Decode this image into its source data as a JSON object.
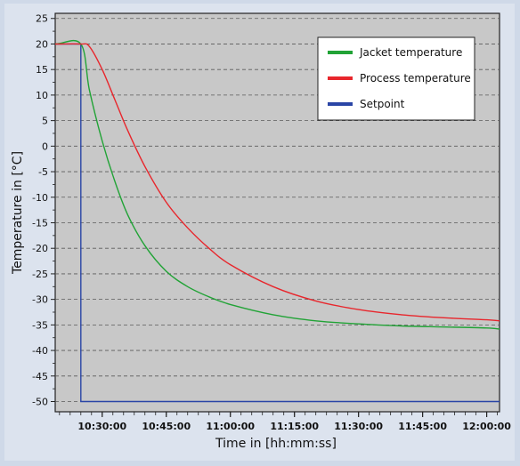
{
  "chart_data": {
    "type": "line",
    "title": "",
    "xlabel": "Time in [hh:mm:ss]",
    "ylabel": "Temperature in [°C]",
    "xlim": [
      "10:19:00",
      "12:03:00"
    ],
    "ylim": [
      -52,
      26
    ],
    "x_ticks": [
      "10:30:00",
      "10:45:00",
      "11:00:00",
      "11:15:00",
      "11:30:00",
      "11:45:00",
      "12:00:00"
    ],
    "y_ticks": [
      25,
      20,
      15,
      10,
      5,
      0,
      -5,
      -10,
      -15,
      -20,
      -25,
      -30,
      -35,
      -40,
      -45,
      -50
    ],
    "grid": true,
    "legend_position": "top-right",
    "series": [
      {
        "name": "Jacket temperature",
        "color": "#21a336",
        "x": [
          "10:19:00",
          "10:25:00",
          "10:27:00",
          "10:30:00",
          "10:33:00",
          "10:36:00",
          "10:40:00",
          "10:45:00",
          "10:50:00",
          "10:55:00",
          "11:00:00",
          "11:10:00",
          "11:20:00",
          "11:30:00",
          "11:40:00",
          "11:50:00",
          "12:00:00",
          "12:03:00"
        ],
        "y": [
          20,
          20,
          11,
          1,
          -7,
          -13.5,
          -19.5,
          -24.5,
          -27.5,
          -29.5,
          -31,
          -33,
          -34.2,
          -34.8,
          -35.2,
          -35.4,
          -35.6,
          -35.8
        ]
      },
      {
        "name": "Process temperature",
        "color": "#e8262c",
        "x": [
          "10:19:00",
          "10:25:00",
          "10:27:00",
          "10:30:00",
          "10:33:00",
          "10:36:00",
          "10:40:00",
          "10:45:00",
          "10:50:00",
          "10:55:00",
          "11:00:00",
          "11:10:00",
          "11:20:00",
          "11:30:00",
          "11:40:00",
          "11:50:00",
          "12:00:00",
          "12:03:00"
        ],
        "y": [
          20,
          20,
          19.5,
          15,
          9,
          3,
          -4,
          -11,
          -16,
          -20,
          -23.2,
          -27.5,
          -30.3,
          -32,
          -33,
          -33.6,
          -34,
          -34.2
        ]
      },
      {
        "name": "Setpoint",
        "color": "#2a45a6",
        "x": [
          "10:19:00",
          "10:25:00",
          "10:25:00",
          "12:03:00"
        ],
        "y": [
          20,
          20,
          -50,
          -50
        ]
      }
    ]
  }
}
